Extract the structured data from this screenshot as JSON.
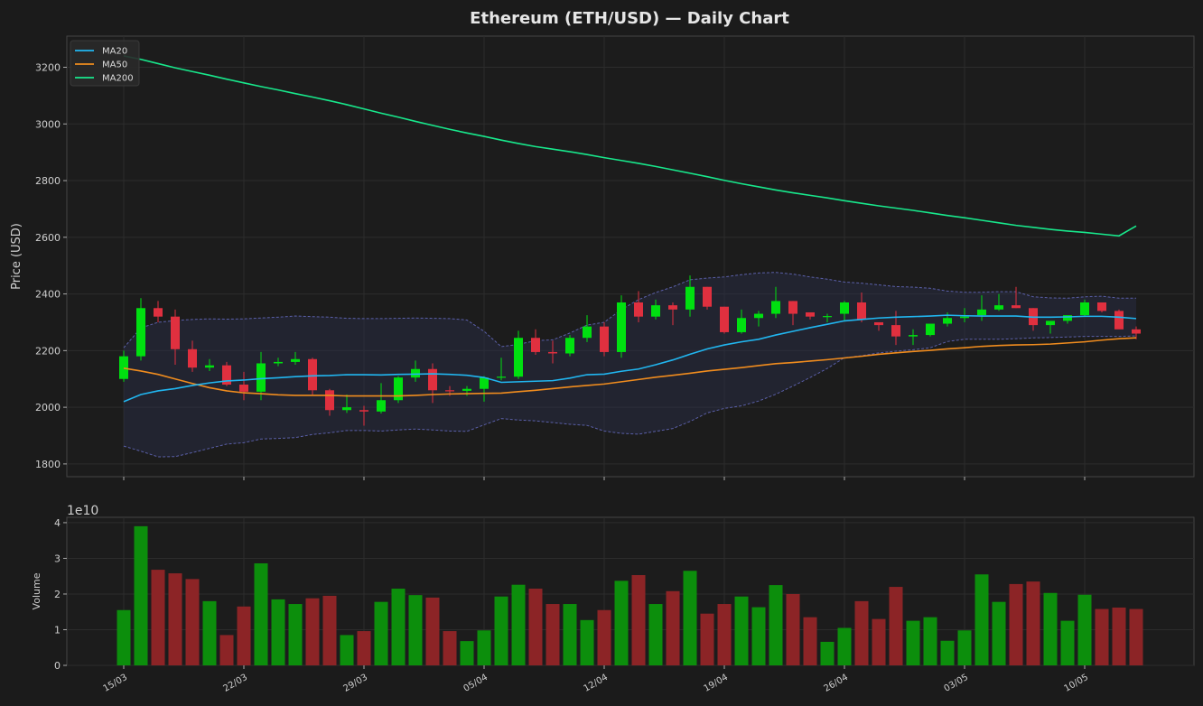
{
  "chart_data": [
    {
      "type": "candlestick",
      "title": "Ethereum (ETH/USD) — Daily Chart",
      "ylabel": "Price (USD)",
      "ylim": [
        1755,
        3310
      ],
      "yticks": [
        1800,
        2000,
        2200,
        2400,
        2600,
        2800,
        3000,
        3200
      ],
      "grid": true,
      "legend_position": "top-left",
      "legend": [
        "MA20",
        "MA50",
        "MA200"
      ],
      "colors": {
        "up": "#00e010",
        "down": "#e0303f",
        "ma20": "#21b6f0",
        "ma50": "#f08c1e",
        "ma200": "#18e88c",
        "band": "#5a5fa8"
      },
      "x_start_date": "2024-03-15",
      "xticks": [
        "15/03",
        "22/03",
        "29/03",
        "05/04",
        "12/04",
        "19/04",
        "26/04",
        "03/05",
        "10/05"
      ],
      "ohlc": [
        [
          2100,
          2200,
          2090,
          2180
        ],
        [
          2180,
          2385,
          2165,
          2350
        ],
        [
          2350,
          2375,
          2300,
          2320
        ],
        [
          2320,
          2345,
          2150,
          2205
        ],
        [
          2205,
          2235,
          2125,
          2140
        ],
        [
          2140,
          2170,
          2128,
          2148
        ],
        [
          2148,
          2160,
          2075,
          2080
        ],
        [
          2080,
          2125,
          2025,
          2055
        ],
        [
          2055,
          2195,
          2025,
          2155
        ],
        [
          2155,
          2175,
          2145,
          2160
        ],
        [
          2160,
          2195,
          2150,
          2170
        ],
        [
          2170,
          2175,
          2045,
          2060
        ],
        [
          2060,
          2065,
          1970,
          1990
        ],
        [
          1990,
          2045,
          1980,
          2000
        ],
        [
          1990,
          2005,
          1935,
          1985
        ],
        [
          1985,
          2085,
          1978,
          2025
        ],
        [
          2025,
          2110,
          2015,
          2105
        ],
        [
          2105,
          2165,
          2090,
          2135
        ],
        [
          2135,
          2155,
          2015,
          2060
        ],
        [
          2060,
          2075,
          2040,
          2058
        ],
        [
          2058,
          2075,
          2040,
          2065
        ],
        [
          2065,
          2110,
          2020,
          2105
        ],
        [
          2105,
          2175,
          2095,
          2108
        ],
        [
          2108,
          2270,
          2100,
          2245
        ],
        [
          2245,
          2275,
          2185,
          2195
        ],
        [
          2195,
          2235,
          2155,
          2190
        ],
        [
          2190,
          2255,
          2180,
          2245
        ],
        [
          2245,
          2325,
          2230,
          2285
        ],
        [
          2285,
          2300,
          2180,
          2195
        ],
        [
          2195,
          2395,
          2175,
          2370
        ],
        [
          2370,
          2410,
          2300,
          2320
        ],
        [
          2320,
          2380,
          2310,
          2360
        ],
        [
          2360,
          2370,
          2290,
          2345
        ],
        [
          2345,
          2465,
          2320,
          2425
        ],
        [
          2425,
          2425,
          2345,
          2355
        ],
        [
          2355,
          2355,
          2260,
          2265
        ],
        [
          2265,
          2345,
          2260,
          2315
        ],
        [
          2315,
          2340,
          2285,
          2330
        ],
        [
          2330,
          2425,
          2315,
          2375
        ],
        [
          2375,
          2375,
          2290,
          2330
        ],
        [
          2335,
          2335,
          2310,
          2320
        ],
        [
          2320,
          2330,
          2300,
          2322
        ],
        [
          2330,
          2375,
          2305,
          2370
        ],
        [
          2370,
          2405,
          2300,
          2310
        ],
        [
          2300,
          2300,
          2270,
          2290
        ],
        [
          2290,
          2340,
          2220,
          2250
        ],
        [
          2250,
          2275,
          2220,
          2255
        ],
        [
          2255,
          2295,
          2250,
          2295
        ],
        [
          2295,
          2335,
          2285,
          2315
        ],
        [
          2315,
          2350,
          2300,
          2320
        ],
        [
          2325,
          2395,
          2305,
          2345
        ],
        [
          2345,
          2400,
          2340,
          2360
        ],
        [
          2360,
          2425,
          2350,
          2350
        ],
        [
          2350,
          2350,
          2270,
          2290
        ],
        [
          2290,
          2300,
          2260,
          2305
        ],
        [
          2305,
          2320,
          2295,
          2325
        ],
        [
          2325,
          2380,
          2320,
          2370
        ],
        [
          2370,
          2370,
          2335,
          2340
        ],
        [
          2340,
          2345,
          2280,
          2275
        ],
        [
          2275,
          2285,
          2240,
          2260
        ]
      ],
      "ma20": [
        2020,
        2045,
        2058,
        2066,
        2077,
        2086,
        2093,
        2096,
        2101,
        2104,
        2108,
        2111,
        2112,
        2115,
        2115,
        2114,
        2116,
        2117,
        2118,
        2116,
        2113,
        2105,
        2088,
        2090,
        2092,
        2094,
        2103,
        2115,
        2117,
        2127,
        2135,
        2150,
        2167,
        2187,
        2206,
        2220,
        2231,
        2240,
        2255,
        2268,
        2281,
        2293,
        2305,
        2310,
        2315,
        2318,
        2320,
        2322,
        2325,
        2323,
        2322,
        2322,
        2322,
        2318,
        2318,
        2319,
        2321,
        2321,
        2318,
        2313
      ],
      "ma50": [
        2138,
        2128,
        2116,
        2100,
        2084,
        2069,
        2058,
        2051,
        2048,
        2044,
        2042,
        2042,
        2042,
        2040,
        2040,
        2040,
        2040,
        2042,
        2045,
        2047,
        2048,
        2049,
        2050,
        2055,
        2060,
        2066,
        2072,
        2077,
        2082,
        2090,
        2098,
        2106,
        2113,
        2120,
        2128,
        2134,
        2140,
        2147,
        2154,
        2158,
        2163,
        2168,
        2174,
        2180,
        2187,
        2192,
        2197,
        2201,
        2206,
        2210,
        2215,
        2218,
        2220,
        2221,
        2223,
        2227,
        2231,
        2237,
        2242,
        2245
      ],
      "ma200": [
        3240,
        3228,
        3213,
        3198,
        3185,
        3172,
        3158,
        3145,
        3132,
        3120,
        3107,
        3095,
        3082,
        3068,
        3053,
        3038,
        3024,
        3009,
        2995,
        2981,
        2968,
        2956,
        2943,
        2931,
        2920,
        2911,
        2902,
        2892,
        2881,
        2871,
        2861,
        2850,
        2838,
        2826,
        2814,
        2801,
        2789,
        2778,
        2767,
        2757,
        2748,
        2739,
        2729,
        2720,
        2711,
        2703,
        2695,
        2686,
        2677,
        2669,
        2660,
        2651,
        2642,
        2635,
        2628,
        2622,
        2617,
        2611,
        2605,
        2640
      ],
      "bb_upper": [
        2210,
        2280,
        2300,
        2306,
        2310,
        2312,
        2311,
        2312,
        2315,
        2318,
        2322,
        2320,
        2318,
        2314,
        2313,
        2313,
        2314,
        2315,
        2314,
        2313,
        2308,
        2268,
        2214,
        2222,
        2235,
        2238,
        2262,
        2290,
        2300,
        2345,
        2380,
        2405,
        2425,
        2450,
        2456,
        2460,
        2468,
        2474,
        2476,
        2470,
        2460,
        2452,
        2442,
        2438,
        2432,
        2426,
        2424,
        2420,
        2410,
        2406,
        2406,
        2408,
        2408,
        2390,
        2386,
        2385,
        2390,
        2392,
        2385,
        2385
      ],
      "bb_lower": [
        1863,
        1845,
        1825,
        1826,
        1840,
        1855,
        1870,
        1875,
        1888,
        1890,
        1893,
        1904,
        1910,
        1918,
        1918,
        1916,
        1920,
        1923,
        1920,
        1916,
        1915,
        1938,
        1960,
        1955,
        1952,
        1946,
        1940,
        1936,
        1916,
        1908,
        1905,
        1915,
        1925,
        1950,
        1980,
        1996,
        2005,
        2022,
        2046,
        2075,
        2105,
        2137,
        2175,
        2182,
        2192,
        2198,
        2203,
        2210,
        2232,
        2240,
        2240,
        2240,
        2242,
        2245,
        2246,
        2248,
        2250,
        2250,
        2250,
        2252
      ],
      "candle_colors_note": "green when close >= open, red otherwise"
    },
    {
      "type": "bar",
      "ylabel": "Volume",
      "scale_label": "1e10",
      "ylim": [
        0,
        4.15
      ],
      "yticks": [
        0,
        1,
        2,
        3,
        4
      ],
      "grid": true,
      "values": [
        1.55,
        3.9,
        2.68,
        2.58,
        2.42,
        1.8,
        0.85,
        1.65,
        2.86,
        1.85,
        1.72,
        1.88,
        1.95,
        0.85,
        0.96,
        1.78,
        2.15,
        1.97,
        1.9,
        0.96,
        0.68,
        0.98,
        1.93,
        2.26,
        2.15,
        1.72,
        1.72,
        1.27,
        1.55,
        2.37,
        2.53,
        1.72,
        2.08,
        2.65,
        1.45,
        1.72,
        1.93,
        1.63,
        2.25,
        2.0,
        1.35,
        0.66,
        1.05,
        1.8,
        1.3,
        2.2,
        1.25,
        1.35,
        0.69,
        0.98,
        2.55,
        1.78,
        2.28,
        2.35,
        2.03,
        1.25,
        1.98,
        1.58,
        1.62,
        1.58
      ],
      "colors": {
        "up": "#0c8e0c",
        "down": "#8c2426"
      }
    }
  ]
}
